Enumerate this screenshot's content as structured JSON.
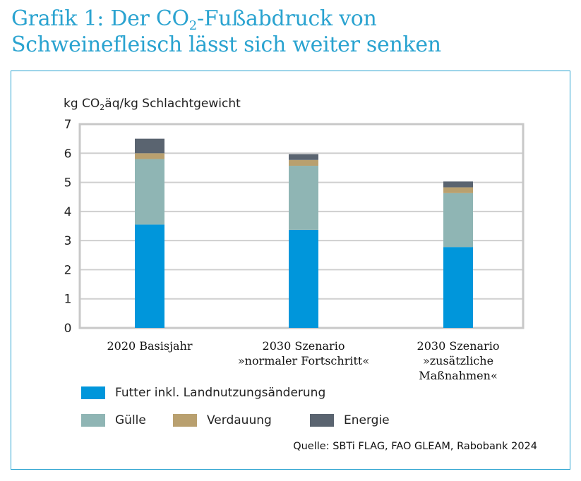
{
  "title": {
    "line1_pre": "Grafik 1: Der CO",
    "line1_sub": "2",
    "line1_post": "-Fußabdruck von",
    "line2": "Schweinefleisch lässt sich weiter senken"
  },
  "ylabel": {
    "pre": "kg CO",
    "sub": "2",
    "post": "äq/kg Schlachtgewicht"
  },
  "source": "Quelle: SBTi FLAG, FAO GLEAM, Rabobank 2024",
  "colors": {
    "futter": "#0096db",
    "guelle": "#8fb5b4",
    "verdauung": "#b9a06f",
    "energie": "#5a6470",
    "grid": "#cfcfcf",
    "axis_frame": "#c8c8c8"
  },
  "chart_data": {
    "type": "bar",
    "stacked": true,
    "categories": [
      "2020 Basisjahr",
      "2030 Szenario\n»normaler Fortschritt«",
      "2030 Szenario\n»zusätzliche\nMaßnahmen«"
    ],
    "series": [
      {
        "name": "Futter inkl. Landnutzungsänderung",
        "color_key": "futter",
        "values": [
          3.55,
          3.37,
          2.78
        ]
      },
      {
        "name": "Gülle",
        "color_key": "guelle",
        "values": [
          2.25,
          2.2,
          1.85
        ]
      },
      {
        "name": "Verdauung",
        "color_key": "verdauung",
        "values": [
          0.2,
          0.2,
          0.2
        ]
      },
      {
        "name": "Energie",
        "color_key": "energie",
        "values": [
          0.5,
          0.2,
          0.2
        ]
      }
    ],
    "ylim": [
      0,
      7
    ],
    "yticks": [
      0,
      1,
      2,
      3,
      4,
      5,
      6,
      7
    ],
    "grid": true,
    "legend_position": "bottom"
  }
}
